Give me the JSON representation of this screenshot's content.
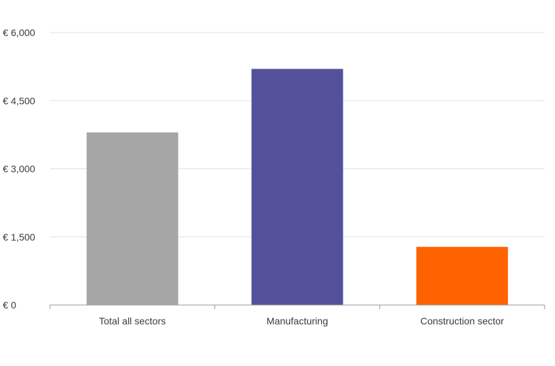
{
  "chart_data": {
    "type": "bar",
    "categories": [
      "Total all sectors",
      "Manufacturing",
      "Construction sector"
    ],
    "values": [
      3800,
      5200,
      1280
    ],
    "bar_colors": [
      "#a6a6a6",
      "#525199",
      "#ff6200"
    ],
    "y_ticks": [
      "€ 0",
      "€ 1,500",
      "€ 3,000",
      "€ 4,500",
      "€ 6,000"
    ],
    "y_tick_values": [
      0,
      1500,
      3000,
      4500,
      6000
    ],
    "ylim": [
      0,
      6000
    ],
    "title": "",
    "xlabel": "",
    "ylabel": "",
    "grid": true,
    "gridline_color": "#e0e0e0",
    "axis_color": "#999999"
  }
}
